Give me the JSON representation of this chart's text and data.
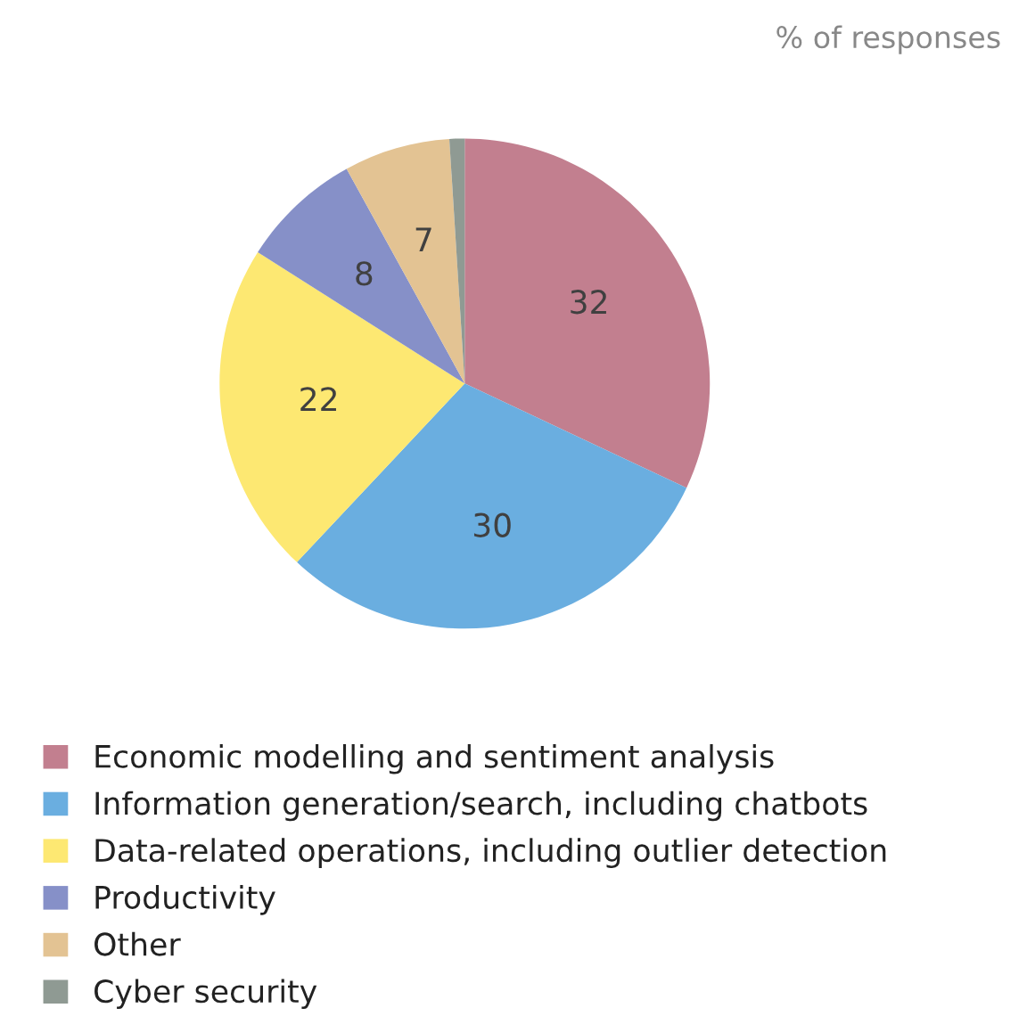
{
  "chart_data": {
    "type": "pie",
    "annotations": [
      "% of responses"
    ],
    "categories": [
      "Economic modelling and sentiment analysis",
      "Information generation/search, including chatbots",
      "Data-related operations, including outlier detection",
      "Productivity",
      "Other",
      "Cyber security"
    ],
    "values": [
      32,
      30,
      22,
      8,
      7,
      1
    ],
    "value_labels": [
      "32",
      "30",
      "22",
      "8",
      "7",
      null
    ],
    "colors": [
      "#c27f8f",
      "#6aaee0",
      "#fde872",
      "#8690c8",
      "#e3c393",
      "#8f9a93"
    ],
    "legend": "bottom"
  }
}
